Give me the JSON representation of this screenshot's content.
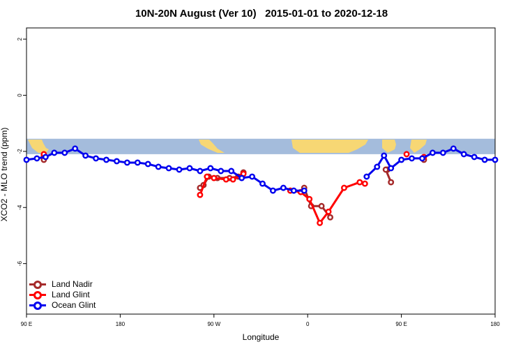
{
  "chart_data": {
    "type": "line",
    "title": "10N-20N August (Ver 10)   2015-01-01 to 2020-12-18",
    "xlabel": "Longitude",
    "ylabel": "XCO2 - MLO trend (ppm)",
    "xlim": [
      -90,
      180
    ],
    "ylim": [
      -7.8,
      2.4
    ],
    "x_ticks": [
      {
        "value": -90,
        "label": "90 E"
      },
      {
        "value": -36,
        "label": "180"
      },
      {
        "value": 18,
        "label": "90 W"
      },
      {
        "value": 72,
        "label": "0"
      },
      {
        "value": 126,
        "label": "90 E"
      },
      {
        "value": 180,
        "label": "180"
      }
    ],
    "y_ticks": [
      {
        "value": 2,
        "label": "2"
      },
      {
        "value": 0,
        "label": "0"
      },
      {
        "value": -2,
        "label": "-2"
      },
      {
        "value": -4,
        "label": "-4"
      },
      {
        "value": -6,
        "label": "-6"
      }
    ],
    "legend_position": "bottom-left",
    "map_band": {
      "y_top": -1.55,
      "y_bottom": -2.1,
      "ocean_color": "#a4bcdc",
      "land_color": "#f7d774"
    },
    "series": [
      {
        "name": "Land Nadir",
        "color": "#a52a2a",
        "segments": [
          [
            [
              -80,
              -2.3
            ],
            [
              -80,
              -2.15
            ]
          ],
          [
            [
              10,
              -3.3
            ],
            [
              12,
              -3.2
            ],
            [
              15,
              -2.9
            ],
            [
              20,
              -2.95
            ],
            [
              27,
              -2.95
            ],
            [
              32,
              -2.9
            ],
            [
              35,
              -2.75
            ]
          ],
          [
            [
              70,
              -3.3
            ],
            [
              74,
              -3.95
            ],
            [
              80,
              -3.95
            ],
            [
              85,
              -4.35
            ]
          ],
          [
            [
              118,
              -2.65
            ]
          ],
          [
            [
              139,
              -2.3
            ]
          ]
        ],
        "segments_b": [
          [
            [
              117,
              -2.65
            ],
            [
              120,
              -3.1
            ]
          ]
        ]
      },
      {
        "name": "Land Glint",
        "color": "#ff0000",
        "segments": [
          [
            [
              -80,
              -2.1
            ]
          ],
          [
            [
              10,
              -3.55
            ],
            [
              14,
              -2.9
            ],
            [
              18,
              -2.95
            ],
            [
              25,
              -3.0
            ],
            [
              29,
              -3.0
            ],
            [
              35,
              -2.8
            ]
          ],
          [
            [
              62,
              -3.4
            ],
            [
              68,
              -3.45
            ],
            [
              73,
              -3.7
            ],
            [
              79,
              -4.55
            ],
            [
              84,
              -4.15
            ],
            [
              93,
              -3.3
            ],
            [
              102,
              -3.1
            ],
            [
              105,
              -3.15
            ]
          ],
          [
            [
              129,
              -2.1
            ]
          ],
          [
            [
              139,
              -2.2
            ]
          ]
        ]
      },
      {
        "name": "Ocean Glint",
        "color": "#0000ee",
        "segments": [
          [
            [
              -90,
              -2.3
            ],
            [
              -84,
              -2.25
            ],
            [
              -79,
              -2.2
            ],
            [
              -74,
              -2.05
            ],
            [
              -68,
              -2.05
            ],
            [
              -62,
              -1.9
            ],
            [
              -56,
              -2.15
            ],
            [
              -50,
              -2.25
            ],
            [
              -44,
              -2.3
            ],
            [
              -38,
              -2.35
            ],
            [
              -32,
              -2.4
            ],
            [
              -26,
              -2.4
            ],
            [
              -20,
              -2.45
            ],
            [
              -14,
              -2.55
            ],
            [
              -8,
              -2.6
            ],
            [
              -2,
              -2.65
            ],
            [
              4,
              -2.6
            ],
            [
              10,
              -2.7
            ],
            [
              16,
              -2.6
            ],
            [
              22,
              -2.7
            ],
            [
              28,
              -2.7
            ],
            [
              34,
              -2.95
            ],
            [
              40,
              -2.9
            ],
            [
              46,
              -3.15
            ],
            [
              52,
              -3.4
            ],
            [
              58,
              -3.3
            ],
            [
              64,
              -3.4
            ],
            [
              70,
              -3.4
            ]
          ],
          [
            [
              106,
              -2.9
            ],
            [
              112,
              -2.55
            ],
            [
              116,
              -2.15
            ],
            [
              120,
              -2.6
            ],
            [
              126,
              -2.3
            ],
            [
              132,
              -2.25
            ],
            [
              138,
              -2.25
            ],
            [
              144,
              -2.05
            ],
            [
              150,
              -2.05
            ],
            [
              156,
              -1.9
            ],
            [
              162,
              -2.1
            ],
            [
              168,
              -2.2
            ],
            [
              174,
              -2.3
            ],
            [
              180,
              -2.3
            ]
          ]
        ]
      }
    ]
  }
}
